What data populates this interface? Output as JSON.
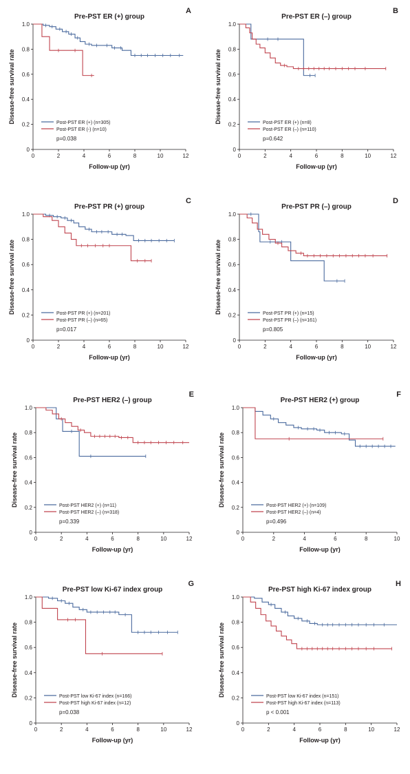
{
  "colors": {
    "blue": "#4a6a9e",
    "red": "#c0444e",
    "axis": "#231f20"
  },
  "chart_data": [
    {
      "panel": "A",
      "type": "line",
      "title": "Pre-PST ER (+) group",
      "xlabel": "Follow-up (yr)",
      "ylabel": "Disease-free survival rate",
      "xlim": [
        0,
        12
      ],
      "xticks": [
        0,
        2,
        4,
        6,
        8,
        10,
        12
      ],
      "ylim": [
        0,
        1.0
      ],
      "yticks": [
        "0",
        "0.2",
        "0.4",
        "0.6",
        "0.8",
        "1.0"
      ],
      "pvalue": "p=0.038",
      "series": [
        {
          "name": "Post-PST ER (+) (n=305)",
          "color": "blue",
          "x": [
            0,
            0.8,
            1.3,
            1.8,
            2.3,
            2.8,
            3.3,
            3.7,
            4.1,
            4.6,
            5.5,
            6.2,
            7.0,
            7.7,
            11.8
          ],
          "y": [
            1.0,
            0.99,
            0.98,
            0.96,
            0.94,
            0.92,
            0.89,
            0.86,
            0.84,
            0.83,
            0.83,
            0.81,
            0.79,
            0.75,
            0.75
          ],
          "censor": [
            1.0,
            1.5,
            2.1,
            2.6,
            3.0,
            3.5,
            4.4,
            5.0,
            5.8,
            6.4,
            6.9,
            8.0,
            8.5,
            9.0,
            9.6,
            10.2,
            10.8,
            11.5
          ]
        },
        {
          "name": "Post-PST ER (-) (n=10)",
          "color": "red",
          "x": [
            0,
            0.7,
            1.3,
            3.9,
            4.8
          ],
          "y": [
            1.0,
            0.9,
            0.79,
            0.59,
            0.59
          ],
          "censor": [
            2.0,
            3.3,
            4.6
          ]
        }
      ]
    },
    {
      "panel": "B",
      "type": "line",
      "title": "Pre-PST ER (–) group",
      "xlabel": "Follow-up (yr)",
      "ylabel": "Disease-free survival rate",
      "xlim": [
        0,
        12
      ],
      "xticks": [
        0,
        2,
        4,
        6,
        8,
        10,
        12
      ],
      "ylim": [
        0,
        1.0
      ],
      "yticks": [
        "0",
        "0.2",
        "0.4",
        "0.6",
        "0.8",
        "1.0"
      ],
      "pvalue": "p=0.642",
      "series": [
        {
          "name": "Post-PST ER (+) (n=8)",
          "color": "blue",
          "x": [
            0,
            0.9,
            5.0,
            5.9
          ],
          "y": [
            1.0,
            0.88,
            0.59,
            0.59
          ],
          "censor": [
            2.2,
            3.0,
            5.5,
            5.9
          ]
        },
        {
          "name": "Post-PST ER (–) (n=110)",
          "color": "red",
          "x": [
            0,
            0.5,
            0.8,
            1.0,
            1.3,
            1.6,
            2.0,
            2.4,
            2.8,
            3.2,
            3.7,
            4.2,
            11.4
          ],
          "y": [
            1.0,
            0.97,
            0.93,
            0.88,
            0.84,
            0.81,
            0.77,
            0.73,
            0.69,
            0.67,
            0.66,
            0.645,
            0.645
          ],
          "censor": [
            3.5,
            4.6,
            5.0,
            5.4,
            5.8,
            6.2,
            6.6,
            7.0,
            7.5,
            8.0,
            8.5,
            9.0,
            9.8,
            11.4
          ]
        }
      ]
    },
    {
      "panel": "C",
      "type": "line",
      "title": "Pre-PST PR (+) group",
      "xlabel": "Follow-up (yr)",
      "ylabel": "Disease-free survival rate",
      "xlim": [
        0,
        12
      ],
      "xticks": [
        0,
        2,
        4,
        6,
        8,
        10,
        12
      ],
      "ylim": [
        0,
        1.0
      ],
      "yticks": [
        "0",
        "0.2",
        "0.4",
        "0.6",
        "0.8",
        "1.0"
      ],
      "pvalue": "p=0.017",
      "series": [
        {
          "name": "Post-PST PR (+) (n=201)",
          "color": "blue",
          "x": [
            0,
            1.0,
            1.6,
            2.2,
            2.7,
            3.2,
            3.6,
            4.1,
            4.6,
            5.6,
            6.2,
            7.3,
            7.9,
            11.1
          ],
          "y": [
            1.0,
            0.99,
            0.98,
            0.97,
            0.95,
            0.93,
            0.9,
            0.88,
            0.86,
            0.86,
            0.84,
            0.83,
            0.79,
            0.79
          ],
          "censor": [
            1.3,
            1.9,
            2.5,
            3.0,
            4.4,
            5.0,
            5.4,
            5.9,
            6.6,
            7.0,
            8.3,
            8.8,
            9.3,
            9.9,
            10.5,
            11.1
          ]
        },
        {
          "name": "Post-PST PR (–) (n=65)",
          "color": "red",
          "x": [
            0,
            0.8,
            1.5,
            2.0,
            2.5,
            3.0,
            3.4,
            7.7,
            9.3
          ],
          "y": [
            1.0,
            0.98,
            0.95,
            0.9,
            0.85,
            0.8,
            0.75,
            0.63,
            0.63
          ],
          "censor": [
            3.8,
            4.3,
            4.9,
            5.5,
            6.0,
            8.2,
            8.8,
            9.3
          ]
        }
      ]
    },
    {
      "panel": "D",
      "type": "line",
      "title": "Pre-PST PR (–) group",
      "xlabel": "Follow-up (yr)",
      "ylabel": "Disease-free survival rate",
      "xlim": [
        0,
        12
      ],
      "xticks": [
        0,
        2,
        4,
        6,
        8,
        10,
        12
      ],
      "ylim": [
        0,
        1.0
      ],
      "yticks": [
        "0",
        "0.2",
        "0.4",
        "0.6",
        "0.8",
        "1.0"
      ],
      "pvalue": "p=0.805",
      "series": [
        {
          "name": "Post-PST PR (+) (n=15)",
          "color": "blue",
          "x": [
            0,
            1.5,
            1.6,
            4.0,
            6.6,
            8.2
          ],
          "y": [
            1.0,
            0.86,
            0.78,
            0.63,
            0.47,
            0.47
          ],
          "censor": [
            0.9,
            2.4,
            3.3,
            7.6,
            8.2
          ]
        },
        {
          "name": "Post-PST PR (–) (n=161)",
          "color": "red",
          "x": [
            0,
            0.6,
            1.0,
            1.4,
            1.8,
            2.3,
            2.8,
            3.3,
            3.8,
            4.4,
            5.0,
            11.5
          ],
          "y": [
            1.0,
            0.97,
            0.93,
            0.88,
            0.84,
            0.8,
            0.77,
            0.74,
            0.71,
            0.69,
            0.67,
            0.67
          ],
          "censor": [
            3.0,
            4.8,
            5.3,
            5.8,
            6.3,
            6.8,
            7.3,
            7.8,
            8.3,
            8.8,
            9.3,
            9.8,
            10.4,
            11.5
          ]
        }
      ]
    },
    {
      "panel": "E",
      "type": "line",
      "title": "Pre-PST HER2 (–) group",
      "xlabel": "Follow-up (yr)",
      "ylabel": "Disease-free survival rate",
      "xlim": [
        0,
        12
      ],
      "xticks": [
        0,
        2,
        4,
        6,
        8,
        10,
        12
      ],
      "ylim": [
        0,
        1.0
      ],
      "yticks": [
        "0",
        "0.2",
        "0.4",
        "0.6",
        "0.8",
        "1.0"
      ],
      "pvalue": "p=0.339",
      "series": [
        {
          "name": "Post-PST HER2 (+) (n=11)",
          "color": "blue",
          "x": [
            0,
            1.6,
            2.1,
            3.4,
            8.6
          ],
          "y": [
            1.0,
            0.91,
            0.81,
            0.61,
            0.61
          ],
          "censor": [
            2.8,
            4.3,
            8.6
          ]
        },
        {
          "name": "Post-PST HER2 (–) (n=318)",
          "color": "red",
          "x": [
            0,
            0.8,
            1.3,
            1.8,
            2.3,
            2.8,
            3.3,
            3.8,
            4.3,
            5.5,
            6.5,
            7.6,
            12.0
          ],
          "y": [
            1.0,
            0.98,
            0.95,
            0.91,
            0.88,
            0.85,
            0.82,
            0.8,
            0.77,
            0.77,
            0.76,
            0.72,
            0.72
          ],
          "censor": [
            2.0,
            3.5,
            4.6,
            5.0,
            5.4,
            5.8,
            6.2,
            6.7,
            7.2,
            8.0,
            8.5,
            9.0,
            9.6,
            10.2,
            10.8,
            11.5
          ]
        }
      ]
    },
    {
      "panel": "F",
      "type": "line",
      "title": "Pre-PST HER2 (+) group",
      "xlabel": "Follow-up (yr)",
      "ylabel": "Disease-free survival rate",
      "xlim": [
        0,
        10
      ],
      "xticks": [
        0,
        2,
        4,
        6,
        8,
        10
      ],
      "ylim": [
        0,
        1.0
      ],
      "yticks": [
        "0",
        "0.2",
        "0.4",
        "0.6",
        "0.8",
        "1.0"
      ],
      "pvalue": "p=0.496",
      "series": [
        {
          "name": "Post-PST HER2 (+) (n=109)",
          "color": "blue",
          "x": [
            0,
            0.8,
            1.3,
            1.8,
            2.3,
            2.8,
            3.3,
            3.8,
            4.8,
            5.3,
            6.4,
            6.9,
            7.3,
            9.9
          ],
          "y": [
            1.0,
            0.97,
            0.94,
            0.91,
            0.88,
            0.86,
            0.84,
            0.83,
            0.82,
            0.8,
            0.79,
            0.74,
            0.69,
            0.69
          ],
          "censor": [
            2.0,
            3.6,
            4.2,
            4.6,
            5.0,
            5.6,
            6.0,
            6.6,
            7.6,
            8.0,
            8.4,
            8.8,
            9.2,
            9.6
          ]
        },
        {
          "name": "Post-PST HER2 (–) (n=4)",
          "color": "red",
          "x": [
            0,
            0.8,
            9.1
          ],
          "y": [
            1.0,
            0.75,
            0.75
          ],
          "censor": [
            3.0,
            9.1
          ]
        }
      ]
    },
    {
      "panel": "G",
      "type": "line",
      "title": "Pre-PST low Ki-67 index group",
      "xlabel": "Follow-up (yr)",
      "ylabel": "Disease-free survival rate",
      "xlim": [
        0,
        12
      ],
      "xticks": [
        0,
        2,
        4,
        6,
        8,
        10,
        12
      ],
      "ylim": [
        0,
        1.0
      ],
      "yticks": [
        "0",
        "0.2",
        "0.4",
        "0.6",
        "0.8",
        "1.0"
      ],
      "pvalue": "p=0.038",
      "series": [
        {
          "name": "Post-PST low Ki-67 index (n=166)",
          "color": "blue",
          "x": [
            0,
            1.0,
            1.7,
            2.3,
            2.9,
            3.4,
            4.0,
            6.5,
            7.5,
            11.1
          ],
          "y": [
            1.0,
            0.99,
            0.97,
            0.95,
            0.92,
            0.9,
            0.88,
            0.86,
            0.72,
            0.72
          ],
          "censor": [
            1.3,
            2.0,
            2.6,
            3.7,
            4.3,
            4.8,
            5.3,
            5.8,
            6.2,
            7.0,
            8.0,
            8.5,
            9.0,
            9.6,
            10.3,
            11.1
          ]
        },
        {
          "name": "Post-PST high Ki-67 index (n=12)",
          "color": "red",
          "x": [
            0,
            0.5,
            1.7,
            3.9,
            9.9
          ],
          "y": [
            1.0,
            0.91,
            0.82,
            0.55,
            0.55
          ],
          "censor": [
            2.5,
            3.1,
            5.2,
            9.9
          ]
        }
      ]
    },
    {
      "panel": "H",
      "type": "line",
      "title": "Pre-PST high Ki-67 index group",
      "xlabel": "Follow-up (yr)",
      "ylabel": "Disease-free survival rate",
      "xlim": [
        0,
        12
      ],
      "xticks": [
        0,
        2,
        4,
        6,
        8,
        10,
        12
      ],
      "ylim": [
        0,
        1.0
      ],
      "yticks": [
        "0",
        "0.2",
        "0.4",
        "0.6",
        "0.8",
        "1.0"
      ],
      "pvalue": "p < 0.001",
      "series": [
        {
          "name": "Post-PST low Ki-67 index (n=151)",
          "color": "blue",
          "x": [
            0,
            0.9,
            1.5,
            2.0,
            2.5,
            3.0,
            3.5,
            4.0,
            4.6,
            5.2,
            5.8,
            12.0
          ],
          "y": [
            1.0,
            0.99,
            0.96,
            0.94,
            0.91,
            0.88,
            0.85,
            0.83,
            0.81,
            0.79,
            0.78,
            0.78
          ],
          "censor": [
            2.2,
            3.3,
            4.3,
            5.0,
            5.6,
            6.2,
            6.6,
            7.0,
            7.5,
            8.0,
            8.5,
            9.0,
            9.6,
            10.2,
            11.0
          ]
        },
        {
          "name": "Post-PST high Ki-67 index (n=113)",
          "color": "red",
          "x": [
            0,
            0.6,
            1.0,
            1.4,
            1.8,
            2.2,
            2.6,
            3.0,
            3.4,
            3.8,
            4.2,
            11.6
          ],
          "y": [
            1.0,
            0.96,
            0.91,
            0.86,
            0.81,
            0.77,
            0.73,
            0.69,
            0.66,
            0.63,
            0.59,
            0.59
          ],
          "censor": [
            4.6,
            5.0,
            5.4,
            5.8,
            6.2,
            6.6,
            7.0,
            7.5,
            8.0,
            8.5,
            9.0,
            9.6,
            10.2,
            11.6
          ]
        }
      ]
    }
  ]
}
